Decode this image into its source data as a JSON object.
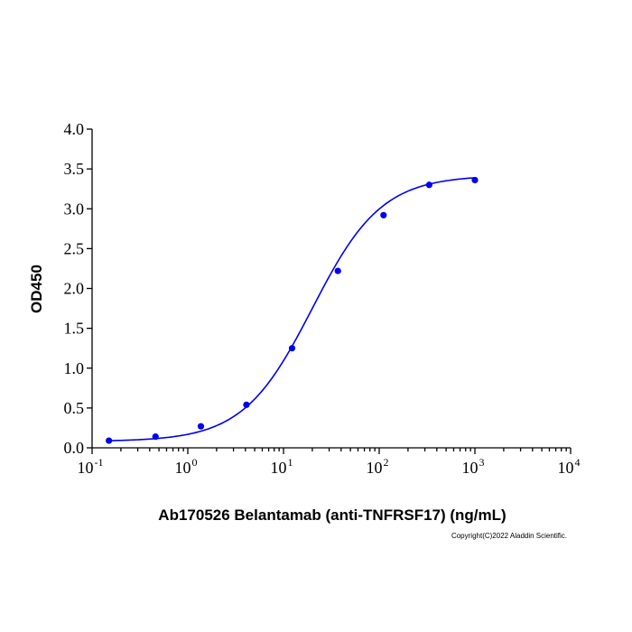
{
  "chart_data": {
    "type": "scatter",
    "title": "",
    "xlabel": "Ab170526 Belantamab (anti-TNFRSF17) (ng/mL)",
    "ylabel": "OD450",
    "x_scale": "log",
    "xlim": [
      0.1,
      10000
    ],
    "ylim": [
      0.0,
      4.0
    ],
    "x_ticks": [
      {
        "base": "10",
        "exp": "-1",
        "value": 0.1
      },
      {
        "base": "10",
        "exp": "0",
        "value": 1
      },
      {
        "base": "10",
        "exp": "1",
        "value": 10
      },
      {
        "base": "10",
        "exp": "2",
        "value": 100
      },
      {
        "base": "10",
        "exp": "3",
        "value": 1000
      },
      {
        "base": "10",
        "exp": "4",
        "value": 10000
      }
    ],
    "y_ticks": [
      "0.0",
      "0.5",
      "1.0",
      "1.5",
      "2.0",
      "2.5",
      "3.0",
      "3.5",
      "4.0"
    ],
    "grid": false,
    "series": [
      {
        "color": "#0000ee",
        "points": [
          {
            "x": 0.15,
            "y": 0.09
          },
          {
            "x": 0.46,
            "y": 0.14
          },
          {
            "x": 1.37,
            "y": 0.27
          },
          {
            "x": 4.1,
            "y": 0.54
          },
          {
            "x": 12.3,
            "y": 1.25
          },
          {
            "x": 37.0,
            "y": 2.22
          },
          {
            "x": 111.0,
            "y": 2.92
          },
          {
            "x": 333.0,
            "y": 3.3
          },
          {
            "x": 1000.0,
            "y": 3.36
          }
        ],
        "fit": {
          "model": "4PL",
          "bottom": 0.08,
          "top": 3.42,
          "ec50": 20.0,
          "hill": 1.2
        }
      }
    ],
    "annotations": [
      "Copyright(C)2022 Aladdin Scientific."
    ]
  }
}
